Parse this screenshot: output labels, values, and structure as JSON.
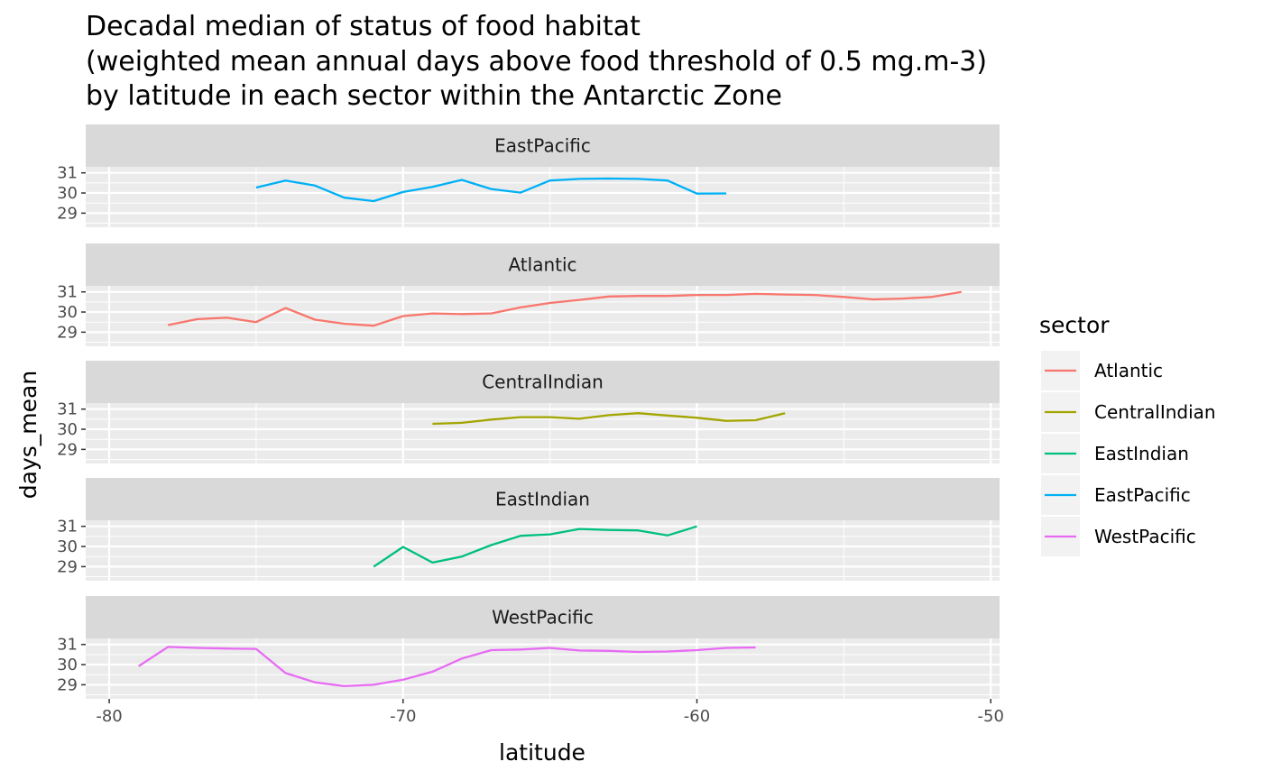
{
  "chart_data": {
    "type": "line",
    "title": [
      "Decadal median of status of food habitat",
      "(weighted mean annual days above food threshold of 0.5 mg.m-3)",
      "by latitude in each sector within the Antarctic Zone"
    ],
    "xlabel": "latitude",
    "ylabel": "days_mean",
    "xlim": [
      -80.8,
      -49.7
    ],
    "ylim": [
      28.3,
      31.3
    ],
    "x_ticks": [
      -80,
      -70,
      -60,
      -50
    ],
    "x_tick_labels": [
      "-80",
      "-70",
      "-60",
      "-50"
    ],
    "y_ticks": [
      29,
      30,
      31
    ],
    "y_tick_labels": [
      "29",
      "30",
      "31"
    ],
    "grid": true,
    "legend": {
      "title": "sector",
      "placement": "right"
    },
    "facet_by": "sector",
    "panel_order": [
      "EastPacific",
      "Atlantic",
      "CentralIndian",
      "EastIndian",
      "WestPacific"
    ],
    "series": [
      {
        "name": "Atlantic",
        "color": "#F8766D",
        "x": [
          -78,
          -77,
          -76,
          -75,
          -74,
          -73,
          -72,
          -71,
          -70,
          -69,
          -68,
          -67,
          -66,
          -65,
          -64,
          -63,
          -62,
          -61,
          -60,
          -59,
          -58,
          -57,
          -56,
          -55,
          -54,
          -53,
          -52,
          -51
        ],
        "y": [
          29.35,
          29.65,
          29.72,
          29.5,
          30.2,
          29.62,
          29.42,
          29.32,
          29.8,
          29.93,
          29.9,
          29.93,
          30.23,
          30.45,
          30.6,
          30.77,
          30.8,
          30.8,
          30.85,
          30.85,
          30.9,
          30.87,
          30.85,
          30.75,
          30.63,
          30.67,
          30.75,
          31.0
        ]
      },
      {
        "name": "CentralIndian",
        "color": "#A3A500",
        "x": [
          -69,
          -68,
          -67,
          -66,
          -65,
          -64,
          -63,
          -62,
          -61,
          -60,
          -59,
          -58,
          -57
        ],
        "y": [
          30.27,
          30.32,
          30.48,
          30.6,
          30.6,
          30.52,
          30.7,
          30.8,
          30.68,
          30.57,
          30.42,
          30.45,
          30.8
        ]
      },
      {
        "name": "EastIndian",
        "color": "#00BF7D",
        "x": [
          -71,
          -70,
          -69,
          -68,
          -67,
          -66,
          -65,
          -64,
          -63,
          -62,
          -61,
          -60
        ],
        "y": [
          29.0,
          29.98,
          29.2,
          29.5,
          30.07,
          30.53,
          30.6,
          30.87,
          30.82,
          30.8,
          30.55,
          31.0
        ]
      },
      {
        "name": "EastPacific",
        "color": "#00B0F6",
        "x": [
          -75,
          -74,
          -73,
          -72,
          -71,
          -70,
          -69,
          -68,
          -67,
          -66,
          -65,
          -64,
          -63,
          -62,
          -61,
          -60,
          -59
        ],
        "y": [
          30.27,
          30.62,
          30.37,
          29.77,
          29.6,
          30.05,
          30.3,
          30.65,
          30.2,
          30.02,
          30.62,
          30.7,
          30.72,
          30.7,
          30.62,
          29.97,
          29.98
        ]
      },
      {
        "name": "WestPacific",
        "color": "#E76BF3",
        "x": [
          -79,
          -78,
          -77,
          -76,
          -75,
          -74,
          -73,
          -72,
          -71,
          -70,
          -69,
          -68,
          -67,
          -66,
          -65,
          -64,
          -63,
          -62,
          -61,
          -60,
          -59,
          -58
        ],
        "y": [
          29.92,
          30.88,
          30.83,
          30.8,
          30.78,
          29.58,
          29.12,
          28.93,
          29.0,
          29.25,
          29.65,
          30.3,
          30.72,
          30.75,
          30.83,
          30.7,
          30.68,
          30.63,
          30.65,
          30.72,
          30.83,
          30.85
        ]
      }
    ]
  }
}
